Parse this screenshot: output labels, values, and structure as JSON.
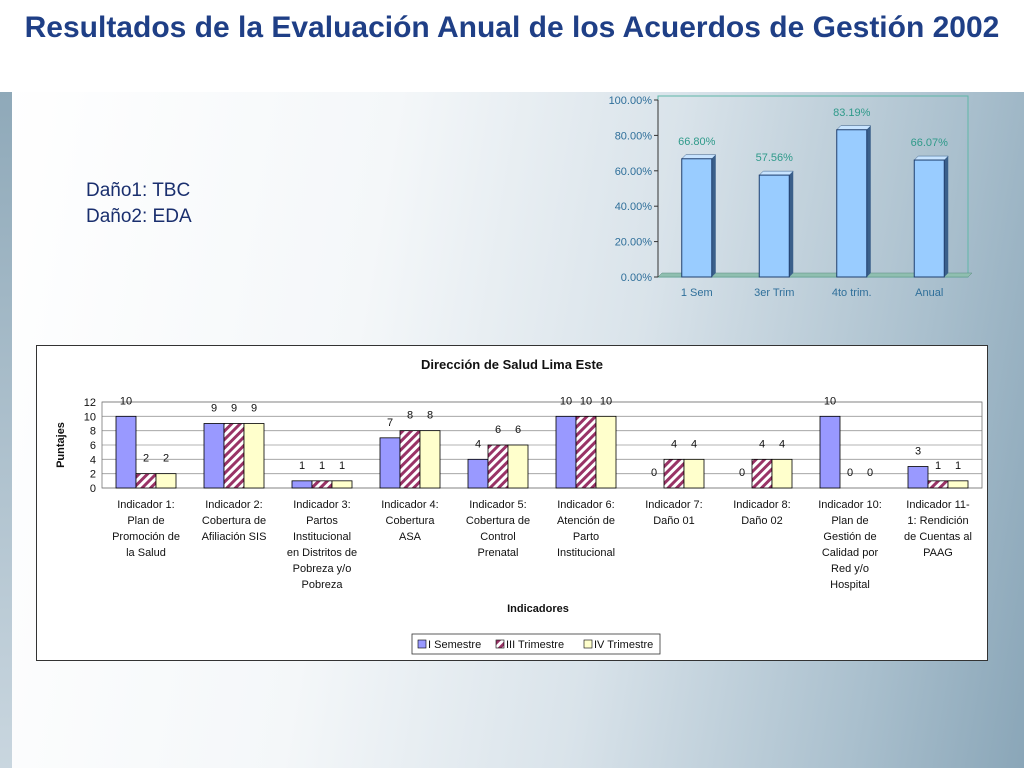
{
  "slide": {
    "title": "Resultados de la Evaluación Anual de los Acuerdos de Gestión 2002",
    "notes": [
      "Daño1: TBC",
      "Daño2: EDA"
    ]
  },
  "chart_data": [
    {
      "type": "bar",
      "categories": [
        "1 Sem",
        "3er Trim",
        "4to trim.",
        "Anual"
      ],
      "values": [
        66.8,
        57.56,
        83.19,
        66.07
      ],
      "value_labels": [
        "66.80%",
        "57.56%",
        "83.19%",
        "66.07%"
      ],
      "ylim": [
        0,
        100
      ],
      "yticks": [
        "0.00%",
        "20.00%",
        "40.00%",
        "60.00%",
        "80.00%",
        "100.00%"
      ],
      "title": "",
      "xlabel": "",
      "ylabel": "",
      "grid": false,
      "colors": {
        "bar": "#99ccff",
        "label": "#2f9a8a"
      }
    },
    {
      "type": "bar",
      "title": "Dirección de Salud Lima Este",
      "xlabel": "Indicadores",
      "ylabel": "Puntajes",
      "ylim": [
        0,
        12
      ],
      "yticks": [
        "0",
        "2",
        "4",
        "6",
        "8",
        "10",
        "12"
      ],
      "grid": true,
      "legend_position": "bottom",
      "categories": [
        [
          "Indicador 1:",
          "Plan de",
          "Promoción de",
          "la Salud"
        ],
        [
          "Indicador 2:",
          "Cobertura de",
          "Afiliación SIS"
        ],
        [
          "Indicador 3:",
          "Partos",
          "Institucional",
          "en Distritos de",
          "Pobreza y/o",
          "Pobreza"
        ],
        [
          "Indicador 4:",
          "Cobertura",
          "ASA"
        ],
        [
          "Indicador 5:",
          "Cobertura de",
          "Control",
          "Prenatal"
        ],
        [
          "Indicador 6:",
          "Atención de",
          "Parto",
          "Institucional"
        ],
        [
          "Indicador 7:",
          "Daño 01"
        ],
        [
          "Indicador 8:",
          "Daño 02"
        ],
        [
          "Indicador 10:",
          "Plan de",
          "Gestión de",
          "Calidad por",
          "Red y/o",
          "Hospital"
        ],
        [
          "Indicador 11-",
          "1: Rendición",
          "de Cuentas al",
          "PAAG"
        ]
      ],
      "series": [
        {
          "name": "I Semestre",
          "values": [
            10,
            9,
            1,
            7,
            4,
            10,
            0,
            0,
            10,
            3
          ],
          "labels": [
            "10",
            "9",
            "1",
            "7",
            "4",
            "10",
            "0",
            "0",
            "10",
            "3"
          ],
          "color": "#9999ff"
        },
        {
          "name": "III Trimestre",
          "values": [
            2,
            9,
            1,
            8,
            6,
            10,
            4,
            4,
            0,
            1
          ],
          "labels": [
            "2",
            "9",
            "1",
            "8",
            "6",
            "10",
            "4",
            "4",
            "0",
            "1"
          ],
          "color": "#993366",
          "pattern": "hatch"
        },
        {
          "name": "IV Trimestre",
          "values": [
            2,
            9,
            1,
            8,
            6,
            10,
            4,
            4,
            0,
            1
          ],
          "labels": [
            "2",
            "9",
            "1",
            "8",
            "6",
            "10",
            "4",
            "4",
            "0",
            "1"
          ],
          "color": "#ffffcc"
        }
      ]
    }
  ]
}
